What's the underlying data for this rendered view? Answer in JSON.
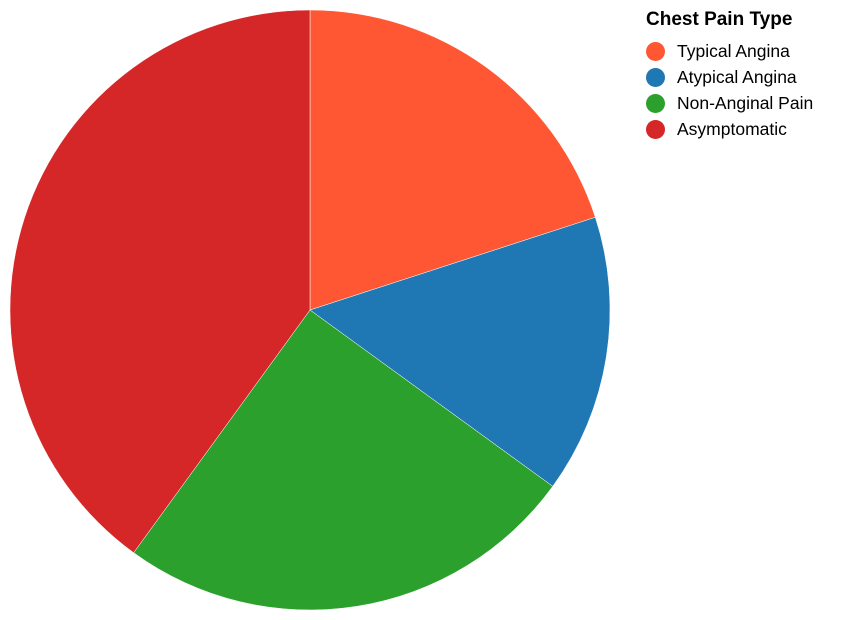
{
  "chart_data": {
    "type": "pie",
    "legend_title": "Chest Pain Type",
    "legend_position": "top-right",
    "categories": [
      "Typical Angina",
      "Atypical Angina",
      "Non-Anginal Pain",
      "Asymptomatic"
    ],
    "values": [
      20,
      15,
      25,
      40
    ],
    "colors": [
      "#ff5733",
      "#1f77b4",
      "#2ca02c",
      "#d62728"
    ]
  }
}
